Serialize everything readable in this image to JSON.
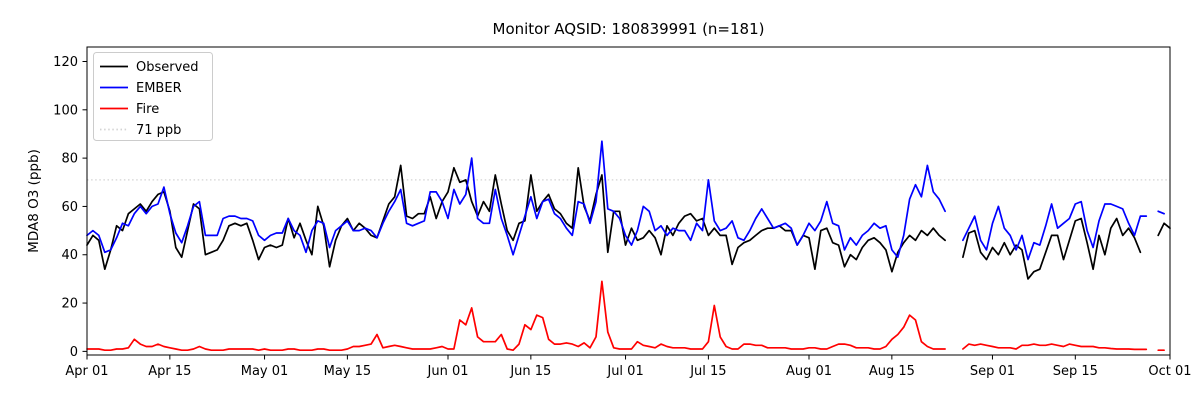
{
  "title": "Monitor AQSID: 180839991 (n=181)",
  "chart_data": {
    "type": "line",
    "title": "Monitor AQSID: 180839991 (n=181)",
    "xlabel": "",
    "ylabel": "MDA8 O3 (ppb)",
    "ylim": [
      -1.5,
      126
    ],
    "yticks": [
      0,
      20,
      40,
      60,
      80,
      100,
      120
    ],
    "x_days_total": 183,
    "x_start_label": "Apr 01",
    "x_end_label": "Oct 01",
    "xtick_days": [
      0,
      14,
      30,
      44,
      61,
      75,
      91,
      105,
      122,
      136,
      153,
      167,
      183
    ],
    "xtick_labels": [
      "Apr 01",
      "Apr 15",
      "May 01",
      "May 15",
      "Jun 01",
      "Jun 15",
      "Jul 01",
      "Jul 15",
      "Aug 01",
      "Aug 15",
      "Sep 01",
      "Sep 15",
      "Oct 01"
    ],
    "grid": false,
    "legend_position": "upper left",
    "threshold": {
      "label": "71 ppb",
      "value": 71,
      "color": "#d3d3d3",
      "style": "dotted"
    },
    "series": [
      {
        "name": "Observed",
        "color": "#000000",
        "values": [
          44,
          48,
          46,
          34,
          42,
          52,
          50,
          57,
          59,
          61,
          58,
          62,
          65,
          66,
          58,
          43,
          39,
          50,
          61,
          59,
          40,
          41,
          42,
          46,
          52,
          53,
          52,
          53,
          46,
          38,
          43,
          44,
          43,
          44,
          55,
          47,
          53,
          46,
          40,
          60,
          52,
          35,
          46,
          52,
          55,
          50,
          53,
          51,
          48,
          47,
          54,
          61,
          64,
          77,
          56,
          55,
          57,
          57,
          64,
          55,
          62,
          66,
          76,
          70,
          71,
          62,
          56,
          62,
          58,
          73,
          61,
          50,
          46,
          53,
          54,
          73,
          58,
          62,
          65,
          59,
          57,
          53,
          51,
          76,
          60,
          54,
          65,
          73,
          41,
          58,
          58,
          44,
          51,
          46,
          47,
          50,
          47,
          40,
          52,
          48,
          53,
          56,
          57,
          54,
          55,
          48,
          51,
          48,
          48,
          36,
          43,
          45,
          46,
          48,
          50,
          51,
          51,
          52,
          50,
          50,
          44,
          48,
          47,
          34,
          50,
          51,
          45,
          44,
          35,
          40,
          38,
          43,
          46,
          47,
          45,
          42,
          33,
          41,
          45,
          48,
          46,
          50,
          48,
          51,
          48,
          46,
          null,
          null,
          39,
          49,
          50,
          41,
          38,
          43,
          40,
          45,
          40,
          44,
          42,
          30,
          33,
          34,
          41,
          48,
          48,
          38,
          46,
          54,
          55,
          45,
          34,
          48,
          40,
          51,
          55,
          48,
          51,
          47,
          41,
          null,
          null,
          48,
          53,
          51
        ]
      },
      {
        "name": "EMBER",
        "color": "#0000ff",
        "values": [
          48,
          50,
          48,
          41,
          42,
          47,
          53,
          52,
          57,
          60,
          57,
          60,
          61,
          68,
          57,
          49,
          45,
          52,
          60,
          62,
          48,
          48,
          48,
          55,
          56,
          56,
          55,
          55,
          54,
          48,
          46,
          48,
          49,
          49,
          55,
          50,
          48,
          41,
          50,
          54,
          53,
          43,
          50,
          52,
          54,
          50,
          50,
          51,
          50,
          47,
          53,
          58,
          62,
          67,
          53,
          52,
          53,
          54,
          66,
          66,
          62,
          55,
          67,
          61,
          65,
          80,
          55,
          53,
          53,
          67,
          55,
          48,
          40,
          48,
          56,
          64,
          55,
          62,
          63,
          57,
          55,
          51,
          48,
          62,
          61,
          53,
          62,
          87,
          59,
          58,
          55,
          48,
          44,
          50,
          60,
          58,
          50,
          52,
          48,
          51,
          50,
          50,
          46,
          53,
          50,
          71,
          54,
          50,
          51,
          54,
          47,
          46,
          50,
          55,
          59,
          55,
          51,
          52,
          53,
          51,
          44,
          48,
          53,
          50,
          54,
          62,
          53,
          52,
          42,
          47,
          44,
          48,
          50,
          53,
          51,
          52,
          42,
          39,
          48,
          63,
          69,
          64,
          77,
          66,
          63,
          58,
          null,
          null,
          46,
          51,
          56,
          46,
          42,
          53,
          60,
          51,
          48,
          42,
          48,
          38,
          45,
          44,
          52,
          61,
          51,
          53,
          55,
          61,
          62,
          50,
          43,
          54,
          61,
          61,
          60,
          59,
          53,
          48,
          56,
          56,
          null,
          58,
          57,
          null
        ]
      },
      {
        "name": "Fire",
        "color": "#ff0000",
        "values": [
          1,
          1,
          1,
          0.5,
          0.5,
          1,
          1,
          1.5,
          5,
          3,
          2,
          2,
          3,
          2,
          1.5,
          1,
          0.5,
          0.5,
          1,
          2,
          1,
          0.5,
          0.5,
          0.5,
          1,
          1,
          1,
          1,
          1,
          0.5,
          1,
          0.5,
          0.5,
          0.5,
          1,
          1,
          0.5,
          0.5,
          0.5,
          1,
          1,
          0.5,
          0.5,
          0.5,
          1,
          2,
          2,
          2.5,
          3,
          7,
          1.5,
          2,
          2.5,
          2,
          1.5,
          1,
          1,
          1,
          1,
          1.5,
          2,
          1,
          1,
          13,
          11,
          18,
          6,
          4,
          4,
          4,
          7,
          1,
          0.5,
          3,
          11,
          9,
          15,
          14,
          5,
          3,
          3,
          3.5,
          3,
          2,
          3.5,
          1.5,
          6,
          29,
          8,
          1.5,
          1,
          1,
          1,
          4,
          2.5,
          2,
          1.5,
          3,
          2,
          1.5,
          1.5,
          1.5,
          1,
          1,
          1,
          4,
          19,
          6,
          2,
          1,
          1,
          3,
          3,
          2.5,
          2.5,
          1.5,
          1.5,
          1.5,
          1.5,
          1,
          1,
          1,
          1.5,
          1.5,
          1,
          1,
          2,
          3,
          3,
          2.5,
          1.5,
          1.5,
          1.5,
          1,
          1,
          2,
          5,
          7,
          10,
          15,
          13,
          4,
          2,
          1,
          1,
          1,
          null,
          null,
          1,
          3,
          2.5,
          3,
          2.5,
          2,
          1.5,
          1.5,
          1.5,
          1,
          2.5,
          2.5,
          3,
          2.5,
          2.5,
          3,
          2.5,
          2,
          3,
          2.5,
          2,
          2,
          2,
          1.5,
          1.5,
          1.2,
          1,
          1,
          1,
          0.8,
          0.8,
          0.8,
          null,
          0.5,
          0.5,
          null
        ]
      }
    ]
  }
}
